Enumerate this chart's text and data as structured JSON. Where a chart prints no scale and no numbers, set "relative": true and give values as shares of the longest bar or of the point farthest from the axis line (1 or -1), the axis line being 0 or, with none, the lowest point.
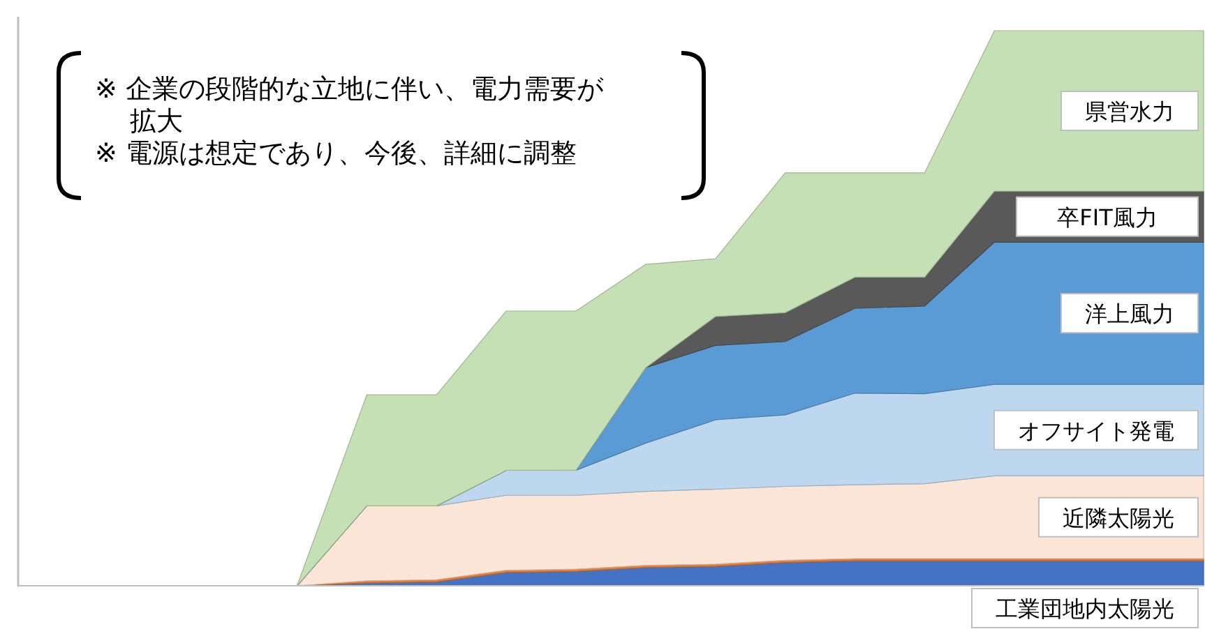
{
  "chart_data": {
    "type": "area",
    "stacked": true,
    "relative": true,
    "legend": false,
    "categories": [
      null,
      null,
      null,
      null,
      null,
      null,
      null,
      null,
      null,
      null,
      null,
      null,
      null,
      null,
      null,
      null,
      null,
      null
    ],
    "series": [
      {
        "name": "工業団地内太陽光",
        "color": "#4472c4",
        "values": [
          0,
          0,
          0,
          0,
          0,
          0.005,
          0.007,
          0.024,
          0.026,
          0.033,
          0.035,
          0.042,
          0.045,
          0.045,
          0.045,
          0.045,
          0.045,
          0.045
        ]
      },
      {
        "color": "#ed7d31",
        "values": [
          0,
          0,
          0,
          0,
          0,
          0.004,
          0.004,
          0.004,
          0.004,
          0.004,
          0.004,
          0.004,
          0.004,
          0.004,
          0.004,
          0.004,
          0.004,
          0.004
        ]
      },
      {
        "name": "近隣太陽光",
        "color": "#fbe5d6",
        "values": [
          0,
          0,
          0,
          0,
          0,
          0.135,
          0.133,
          0.135,
          0.133,
          0.133,
          0.135,
          0.133,
          0.133,
          0.135,
          0.149,
          0.149,
          0.149,
          0.149
        ]
      },
      {
        "name": "オフサイト発電",
        "color": "#bdd7ee",
        "values": [
          0,
          0,
          0,
          0,
          0,
          0,
          0,
          0.045,
          0.045,
          0.087,
          0.125,
          0.129,
          0.165,
          0.162,
          0.165,
          0.165,
          0.165,
          0.165
        ]
      },
      {
        "name": "洋上風力",
        "color": "#5b9bd5",
        "values": [
          0,
          0,
          0,
          0,
          0,
          0,
          0,
          0,
          0,
          0.136,
          0.134,
          0.132,
          0.153,
          0.158,
          0.256,
          0.256,
          0.256,
          0.256
        ]
      },
      {
        "name": "卒FIT風力",
        "color": "#595959",
        "values": [
          0,
          0,
          0,
          0,
          0,
          0,
          0,
          0,
          0,
          0,
          0.052,
          0.052,
          0.056,
          0.052,
          0.092,
          0.092,
          0.092,
          0.092
        ]
      },
      {
        "name": "県営水力",
        "color": "#c5e0b4",
        "values": [
          0,
          0,
          0,
          0,
          0,
          0.2,
          0.2,
          0.287,
          0.287,
          0.186,
          0.104,
          0.252,
          0.188,
          0.188,
          0.289,
          0.289,
          0.289,
          0.289
        ]
      }
    ],
    "annotations": [
      "※ 企業の段階的な立地に伴い、電力需要が拡大",
      "※ 電源は想定であり、今後、詳細に調整"
    ]
  }
}
